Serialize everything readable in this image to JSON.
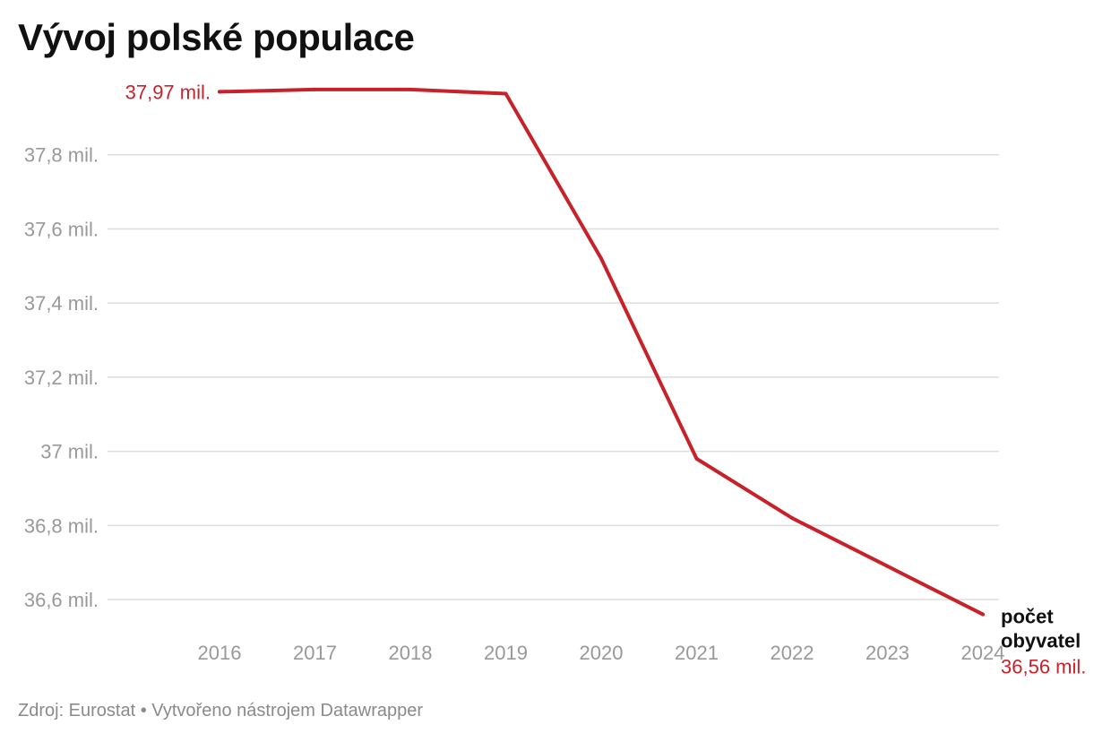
{
  "chart_data": {
    "type": "line",
    "title": "Vývoj polské populace",
    "x": [
      2016,
      2017,
      2018,
      2019,
      2020,
      2021,
      2022,
      2023,
      2024
    ],
    "x_labels": [
      "2016",
      "2017",
      "2018",
      "2019",
      "2020",
      "2021",
      "2022",
      "2023",
      "2024"
    ],
    "series": [
      {
        "name": "počet obyvatel",
        "values": [
          37.97,
          37.976,
          37.976,
          37.965,
          37.52,
          36.98,
          36.82,
          36.69,
          36.56
        ],
        "color": "#c7222a"
      }
    ],
    "ylim": [
      36.53,
      38.0
    ],
    "yticks": [
      36.6,
      36.8,
      37.0,
      37.2,
      37.4,
      37.6,
      37.8
    ],
    "ytick_labels": [
      "36,6 mil.",
      "36,8 mil.",
      "37 mil.",
      "37,2 mil.",
      "37,4 mil.",
      "37,6 mil.",
      "37,8 mil."
    ],
    "grid": true,
    "annotations": {
      "start_value": "37,97 mil.",
      "end_series_line1": "počet",
      "end_series_line2": "obyvatel",
      "end_value": "36,56 mil."
    },
    "xlabel": "",
    "ylabel": ""
  },
  "footer": {
    "source": "Zdroj: Eurostat • Vytvořeno nástrojem Datawrapper"
  },
  "colors": {
    "line": "#c7222a",
    "grid": "#dddddd",
    "tick_text": "#999999",
    "title_text": "#111111"
  }
}
